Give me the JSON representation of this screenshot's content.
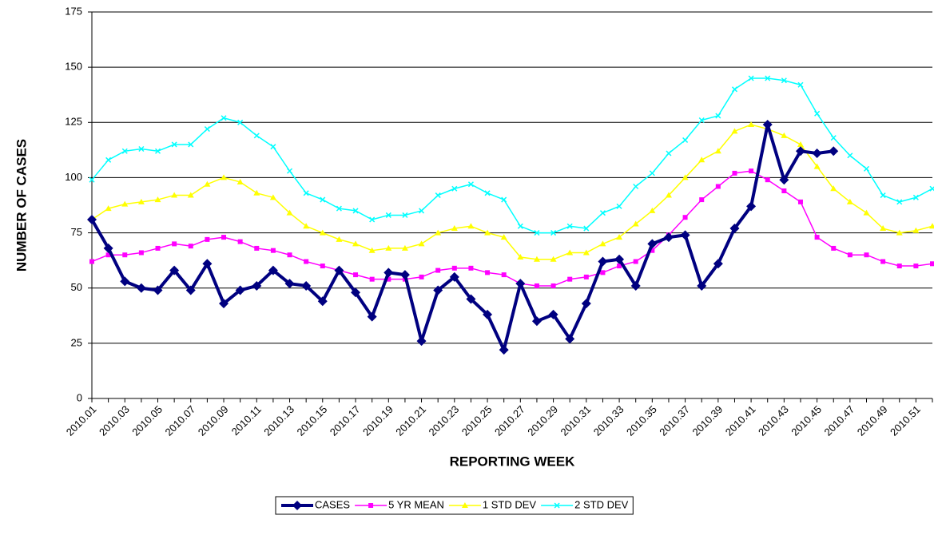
{
  "chart_data": {
    "type": "line",
    "xlabel": "REPORTING WEEK",
    "ylabel": "NUMBER OF CASES",
    "categories": [
      "2010.01",
      null,
      "2010.03",
      null,
      "2010.05",
      null,
      "2010.07",
      null,
      "2010.09",
      null,
      "2010.11",
      null,
      "2010.13",
      null,
      "2010.15",
      null,
      "2010.17",
      null,
      "2010.19",
      null,
      "2010.21",
      null,
      "2010.23",
      null,
      "2010.25",
      null,
      "2010.27",
      null,
      "2010.29",
      null,
      "2010.31",
      null,
      "2010.33",
      null,
      "2010.35",
      null,
      "2010.37",
      null,
      "2010.39",
      null,
      "2010.41",
      null,
      "2010.43",
      null,
      "2010.45",
      null,
      "2010.47",
      null,
      "2010.49",
      null,
      "2010.51",
      null
    ],
    "series": [
      {
        "name": "CASES",
        "color": "#000080",
        "marker": "diamond",
        "values": [
          81,
          68,
          53,
          50,
          49,
          58,
          49,
          61,
          43,
          49,
          51,
          58,
          52,
          51,
          44,
          58,
          48,
          37,
          57,
          56,
          26,
          49,
          55,
          45,
          38,
          22,
          52,
          35,
          38,
          27,
          43,
          62,
          63,
          51,
          70,
          73,
          74,
          51,
          61,
          77,
          87,
          124,
          99,
          112,
          111,
          112,
          null,
          null,
          null,
          null,
          null,
          null
        ]
      },
      {
        "name": "5 YR MEAN",
        "color": "#ff00ff",
        "marker": "square",
        "values": [
          62,
          65,
          65,
          66,
          68,
          70,
          69,
          72,
          73,
          71,
          68,
          67,
          65,
          62,
          60,
          58,
          56,
          54,
          54,
          54,
          55,
          58,
          59,
          59,
          57,
          56,
          52,
          51,
          51,
          54,
          55,
          57,
          60,
          62,
          67,
          74,
          82,
          90,
          96,
          102,
          103,
          99,
          94,
          89,
          73,
          68,
          65,
          65,
          62,
          60,
          60,
          61
        ]
      },
      {
        "name": "1 STD DEV",
        "color": "#ffff00",
        "marker": "triangle",
        "values": [
          81,
          86,
          88,
          89,
          90,
          92,
          92,
          97,
          100,
          98,
          93,
          91,
          84,
          78,
          75,
          72,
          70,
          67,
          68,
          68,
          70,
          75,
          77,
          78,
          75,
          73,
          64,
          63,
          63,
          66,
          66,
          70,
          73,
          79,
          85,
          92,
          100,
          108,
          112,
          121,
          124,
          122,
          119,
          115,
          105,
          95,
          89,
          84,
          77,
          75,
          76,
          78
        ]
      },
      {
        "name": "2 STD DEV",
        "color": "#00ffff",
        "marker": "x",
        "values": [
          99,
          108,
          112,
          113,
          112,
          115,
          115,
          122,
          127,
          125,
          119,
          114,
          103,
          93,
          90,
          86,
          85,
          81,
          83,
          83,
          85,
          92,
          95,
          97,
          93,
          90,
          78,
          75,
          75,
          78,
          77,
          84,
          87,
          96,
          102,
          111,
          117,
          126,
          128,
          140,
          145,
          145,
          144,
          142,
          129,
          118,
          110,
          104,
          92,
          89,
          91,
          95
        ]
      }
    ],
    "ylim": [
      0,
      175
    ],
    "yticks": [
      0,
      25,
      50,
      75,
      100,
      125,
      150,
      175
    ],
    "grid": true,
    "legend": "bottom"
  }
}
